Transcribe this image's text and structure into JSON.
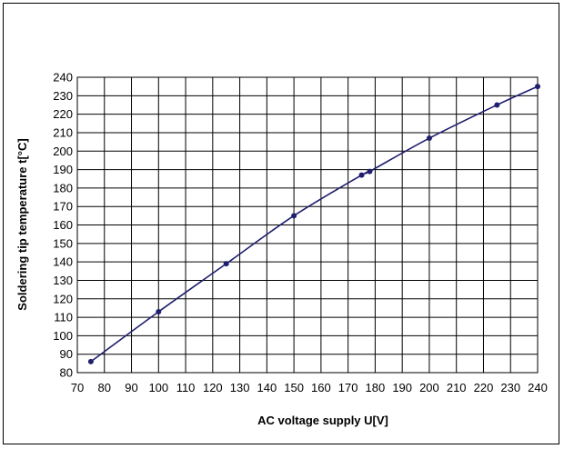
{
  "chart_data": {
    "type": "line",
    "title": "",
    "xlabel": "AC voltage supply U[V]",
    "ylabel": "Soldering tip temperature t[°C]",
    "xlim": [
      70,
      240
    ],
    "ylim": [
      80,
      240
    ],
    "x_ticks": [
      70,
      80,
      90,
      100,
      110,
      120,
      130,
      140,
      150,
      160,
      170,
      180,
      190,
      200,
      210,
      220,
      230,
      240
    ],
    "y_ticks": [
      80,
      90,
      100,
      110,
      120,
      130,
      140,
      150,
      160,
      170,
      180,
      190,
      200,
      210,
      220,
      230,
      240
    ],
    "grid": true,
    "line_color": "#1f1f6e",
    "series": [
      {
        "x": [
          75,
          100,
          125,
          150,
          175,
          178,
          200,
          225,
          240
        ],
        "y": [
          86,
          113,
          139,
          165,
          187,
          189,
          207,
          225,
          235
        ]
      }
    ]
  }
}
